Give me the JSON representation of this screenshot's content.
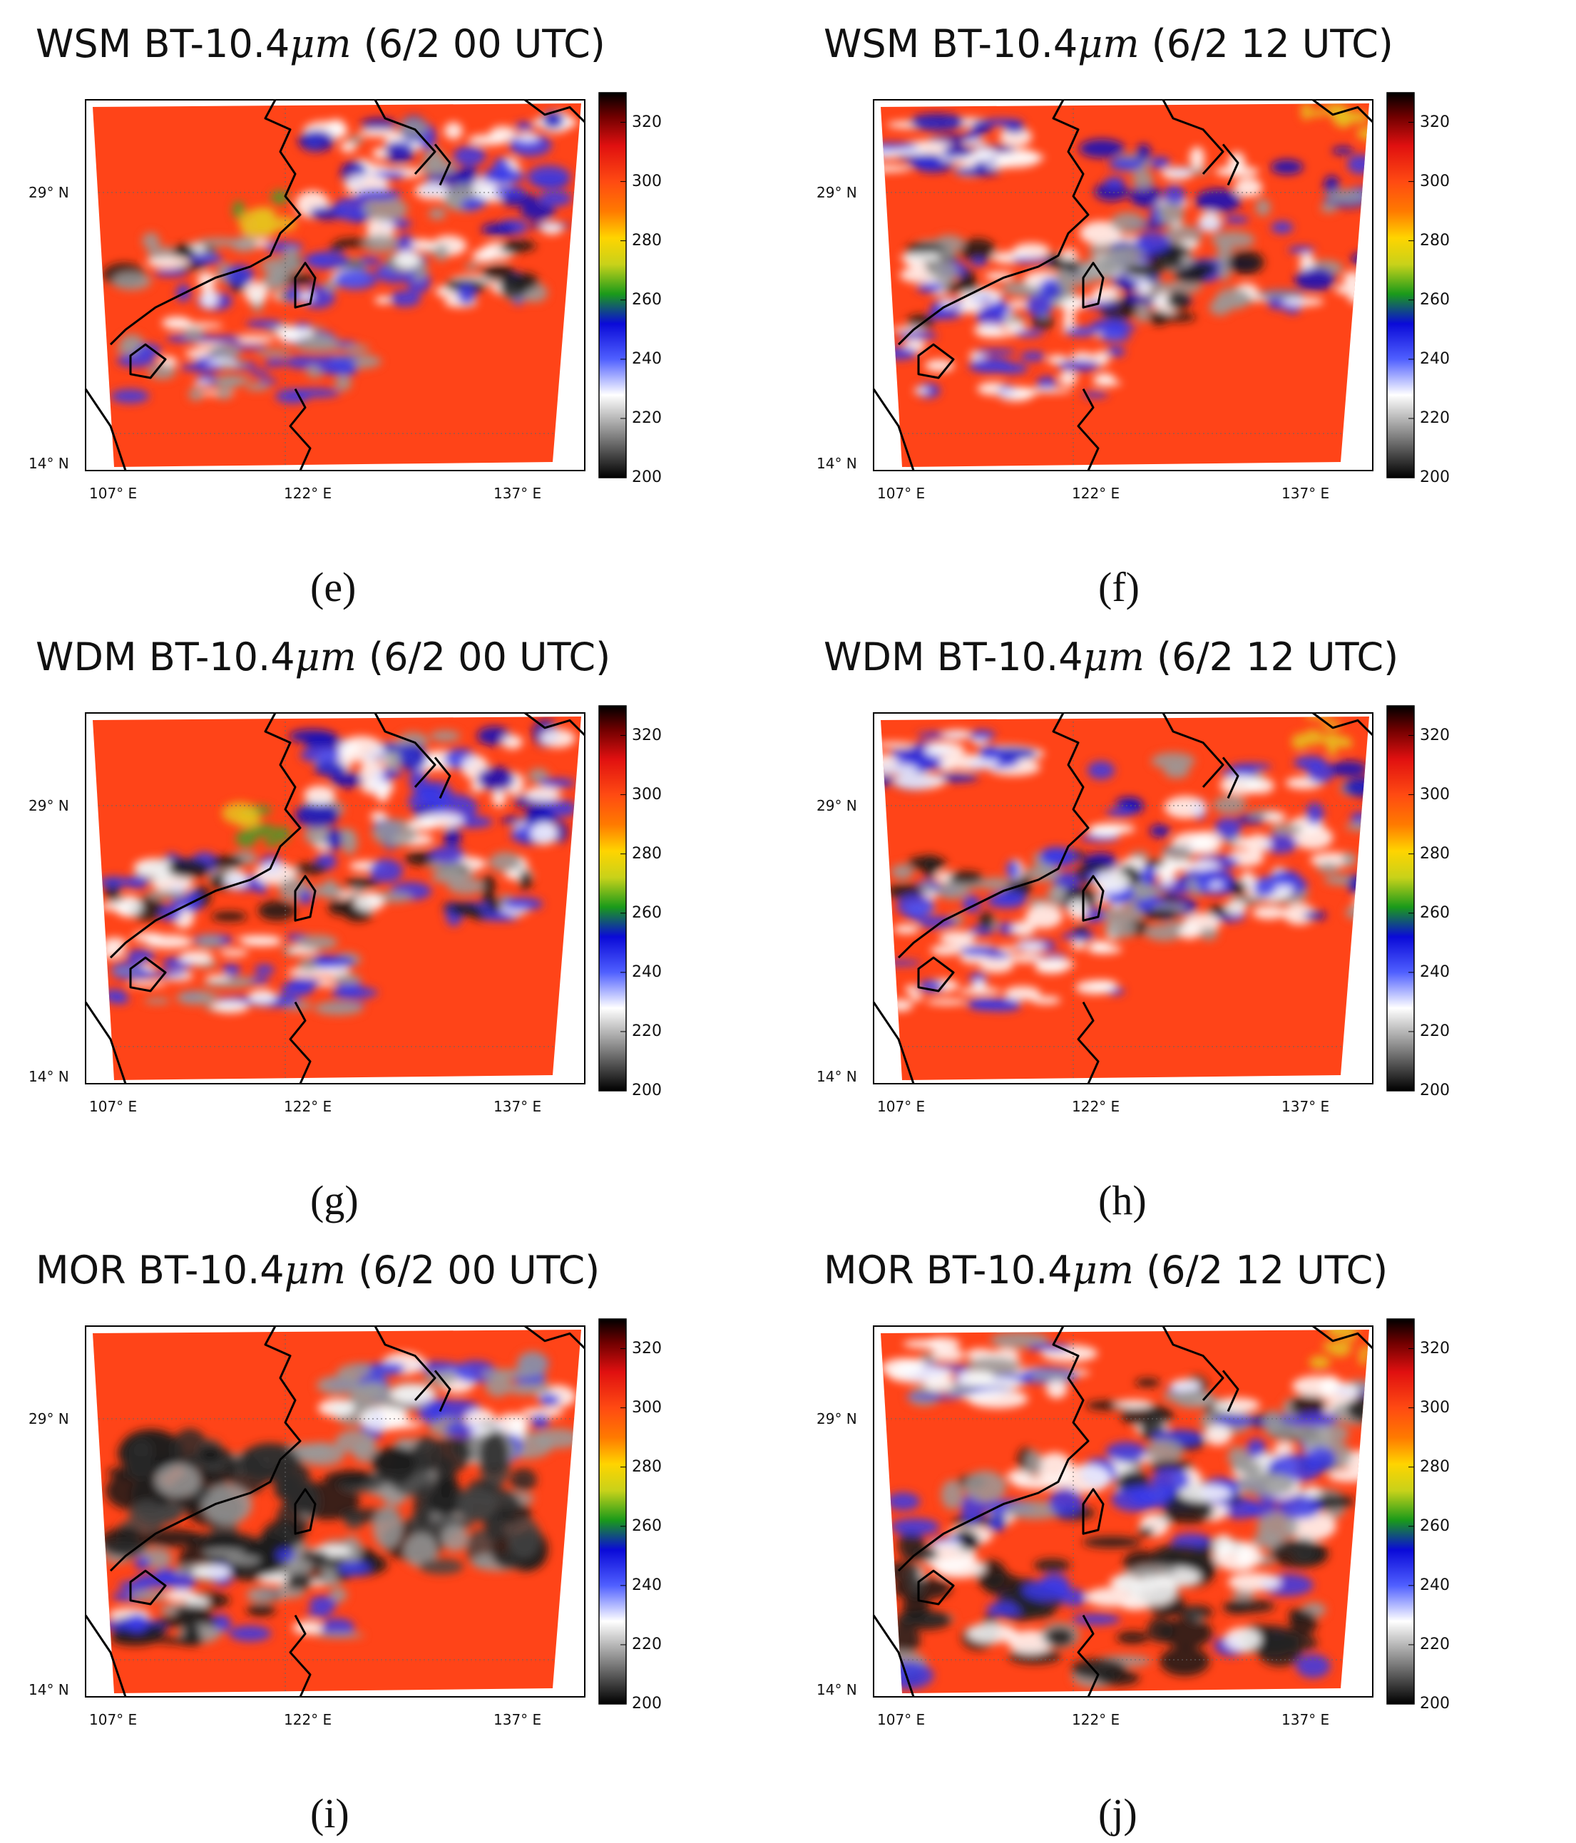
{
  "figure": {
    "panels": [
      {
        "id": "e",
        "model": "WSM",
        "variable": "BT-10.4",
        "unit": "μm",
        "time": "(6/2 00 UTC)",
        "caption": "(e)",
        "regime": "w00"
      },
      {
        "id": "f",
        "model": "WSM",
        "variable": "BT-10.4",
        "unit": "μm",
        "time": "(6/2 12 UTC)",
        "caption": "(f)",
        "regime": "w12"
      },
      {
        "id": "g",
        "model": "WDM",
        "variable": "BT-10.4",
        "unit": "μm",
        "time": "(6/2 00 UTC)",
        "caption": "(g)",
        "regime": "w00"
      },
      {
        "id": "h",
        "model": "WDM",
        "variable": "BT-10.4",
        "unit": "μm",
        "time": "(6/2 12 UTC)",
        "caption": "(h)",
        "regime": "w12"
      },
      {
        "id": "i",
        "model": "MOR",
        "variable": "BT-10.4",
        "unit": "μm",
        "time": "(6/2 00 UTC)",
        "caption": "(i)",
        "regime": "m00"
      },
      {
        "id": "j",
        "model": "MOR",
        "variable": "BT-10.4",
        "unit": "μm",
        "time": "(6/2 12 UTC)",
        "caption": "(j)",
        "regime": "m12"
      }
    ],
    "lat_ticks": [
      "29° N",
      "14° N"
    ],
    "lon_ticks": [
      "107° E",
      "122° E",
      "137° E"
    ],
    "colorbar": {
      "ticks": [
        "320",
        "300",
        "280",
        "260",
        "240",
        "220",
        "200"
      ],
      "range": [
        200,
        330
      ],
      "stops": [
        {
          "v": 200,
          "c": "#000000"
        },
        {
          "v": 215,
          "c": "#8a8a8a"
        },
        {
          "v": 228,
          "c": "#ffffff"
        },
        {
          "v": 240,
          "c": "#4f5fff"
        },
        {
          "v": 252,
          "c": "#0a0ad8"
        },
        {
          "v": 262,
          "c": "#1a9a1a"
        },
        {
          "v": 272,
          "c": "#c8d21a"
        },
        {
          "v": 281,
          "c": "#ffd400"
        },
        {
          "v": 290,
          "c": "#ff7a00"
        },
        {
          "v": 300,
          "c": "#ff4a12"
        },
        {
          "v": 312,
          "c": "#e01010"
        },
        {
          "v": 322,
          "c": "#700000"
        },
        {
          "v": 330,
          "c": "#000000"
        }
      ]
    },
    "colors": {
      "sea_warm": "#ff4418",
      "mid_cold": "#3a3ae8",
      "deep_cold": "#111111",
      "gray": "#b8b8b8",
      "coast": "#000000"
    }
  }
}
